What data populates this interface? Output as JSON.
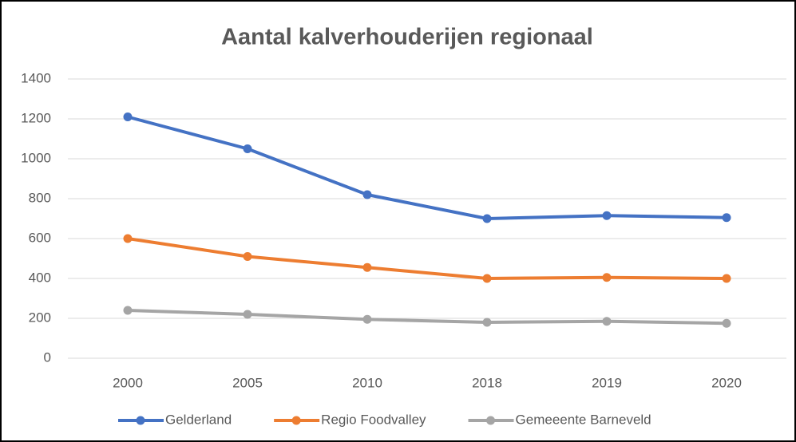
{
  "chart_data": {
    "type": "line",
    "title": "Aantal kalverhouderijen regionaal",
    "categories": [
      "2000",
      "2005",
      "2010",
      "2018",
      "2019",
      "2020"
    ],
    "series": [
      {
        "name": "Gelderland",
        "color": "#4472c4",
        "values": [
          1210,
          1050,
          820,
          700,
          715,
          705
        ]
      },
      {
        "name": "Regio Foodvalley",
        "color": "#ed7d31",
        "values": [
          600,
          510,
          455,
          400,
          405,
          400
        ]
      },
      {
        "name": "Gemeeente Barneveld",
        "color": "#a5a5a5",
        "values": [
          240,
          220,
          195,
          180,
          185,
          175
        ]
      }
    ],
    "ylim": [
      0,
      1400
    ],
    "yticks": [
      0,
      200,
      400,
      600,
      800,
      1000,
      1200,
      1400
    ],
    "grid": true,
    "legend": "bottom"
  }
}
